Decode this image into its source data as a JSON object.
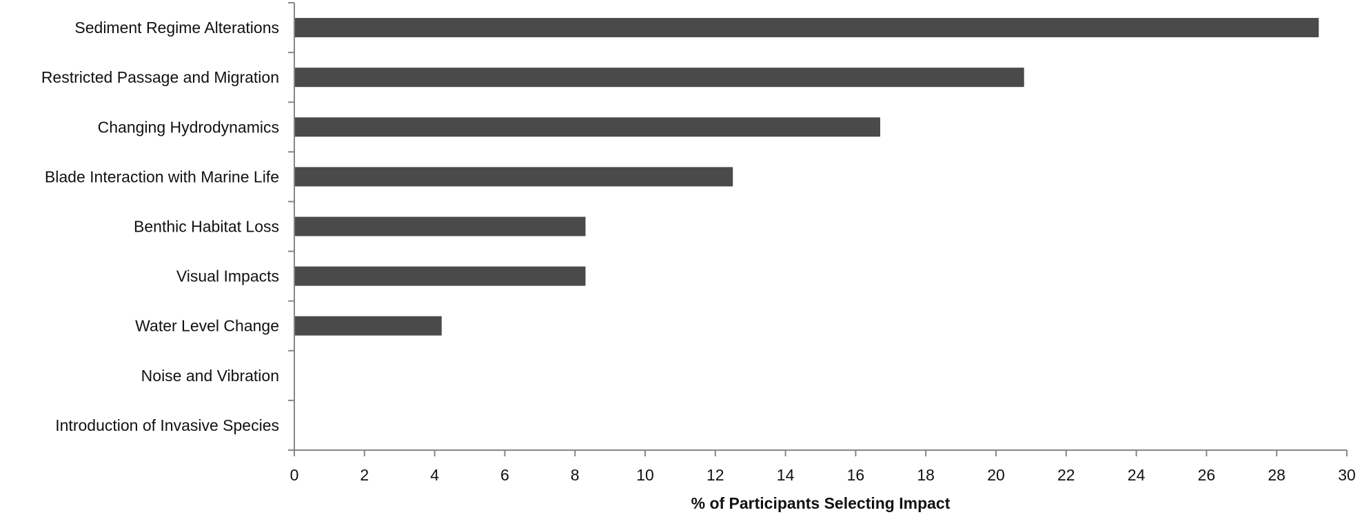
{
  "chart_data": {
    "type": "bar",
    "orientation": "horizontal",
    "title": "",
    "xlabel": "% of Participants Selecting Impact",
    "ylabel": "",
    "categories": [
      "Sediment Regime Alterations",
      "Restricted Passage and Migration",
      "Changing Hydrodynamics",
      "Blade Interaction with Marine Life",
      "Benthic Habitat Loss",
      "Visual Impacts",
      "Water Level Change",
      "Noise and Vibration",
      "Introduction of Invasive Species"
    ],
    "values": [
      29.2,
      20.8,
      16.7,
      12.5,
      8.3,
      8.3,
      4.2,
      0,
      0
    ],
    "xlim": [
      0,
      30
    ],
    "xticks": [
      0,
      2,
      4,
      6,
      8,
      10,
      12,
      14,
      16,
      18,
      20,
      22,
      24,
      26,
      28,
      30
    ],
    "grid": false,
    "legend": "none",
    "colors": {
      "bar": "#4a4a4a",
      "axis": "#868686",
      "text": "#111111"
    }
  }
}
